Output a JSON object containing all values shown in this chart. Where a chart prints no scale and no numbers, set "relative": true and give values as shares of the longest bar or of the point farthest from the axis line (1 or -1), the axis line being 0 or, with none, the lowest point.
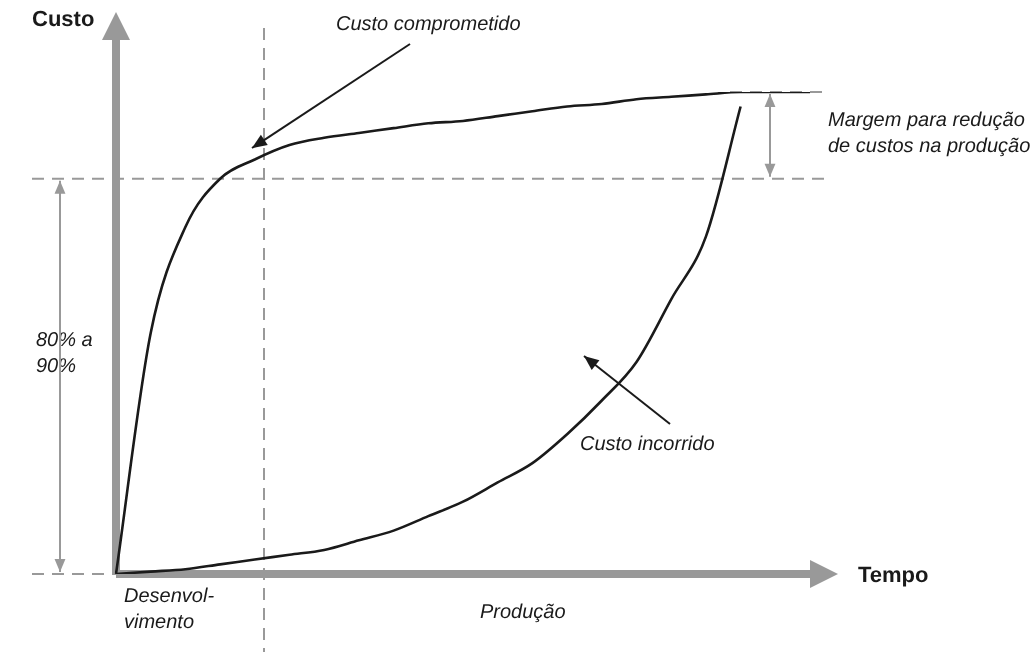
{
  "chart_data": {
    "type": "line",
    "xlabel": "Tempo",
    "ylabel": "Custo",
    "relative": true,
    "legend": false,
    "marker": "none",
    "line_style": "solid",
    "categories": [
      null,
      null,
      null,
      null,
      null,
      null,
      null,
      null,
      null,
      null,
      null,
      null,
      null,
      null,
      null,
      null,
      null,
      null,
      null,
      null,
      null
    ],
    "series": [
      {
        "color": "#1a1a1a",
        "values": [
          0,
          0.5,
          0.72,
          0.82,
          0.86,
          0.89,
          0.905,
          0.915,
          0.925,
          0.935,
          0.94,
          0.95,
          0.96,
          0.97,
          0.975,
          0.985,
          0.99,
          0.995,
          1,
          1,
          1
        ]
      },
      {
        "color": "#1a1a1a",
        "values": [
          0,
          0.005,
          0.01,
          0.02,
          0.03,
          0.04,
          0.05,
          0.07,
          0.09,
          0.12,
          0.15,
          0.19,
          0.23,
          0.29,
          0.36,
          0.44,
          0.57,
          0.7,
          0.97,
          null,
          null
        ]
      }
    ],
    "ref_lines": [
      {
        "axis": "y",
        "value": 0.82,
        "line_style": "dashed",
        "color": "#999999"
      },
      {
        "axis": "y",
        "value": 1,
        "line_style": "dashed",
        "color": "#999999"
      }
    ],
    "annotations": [
      "Custo comprometido",
      "Custo incorrido",
      "Margem para redução\nde custos na produção",
      "80% a\n90%",
      "Desenvol-\nvimento",
      "Produção"
    ]
  }
}
